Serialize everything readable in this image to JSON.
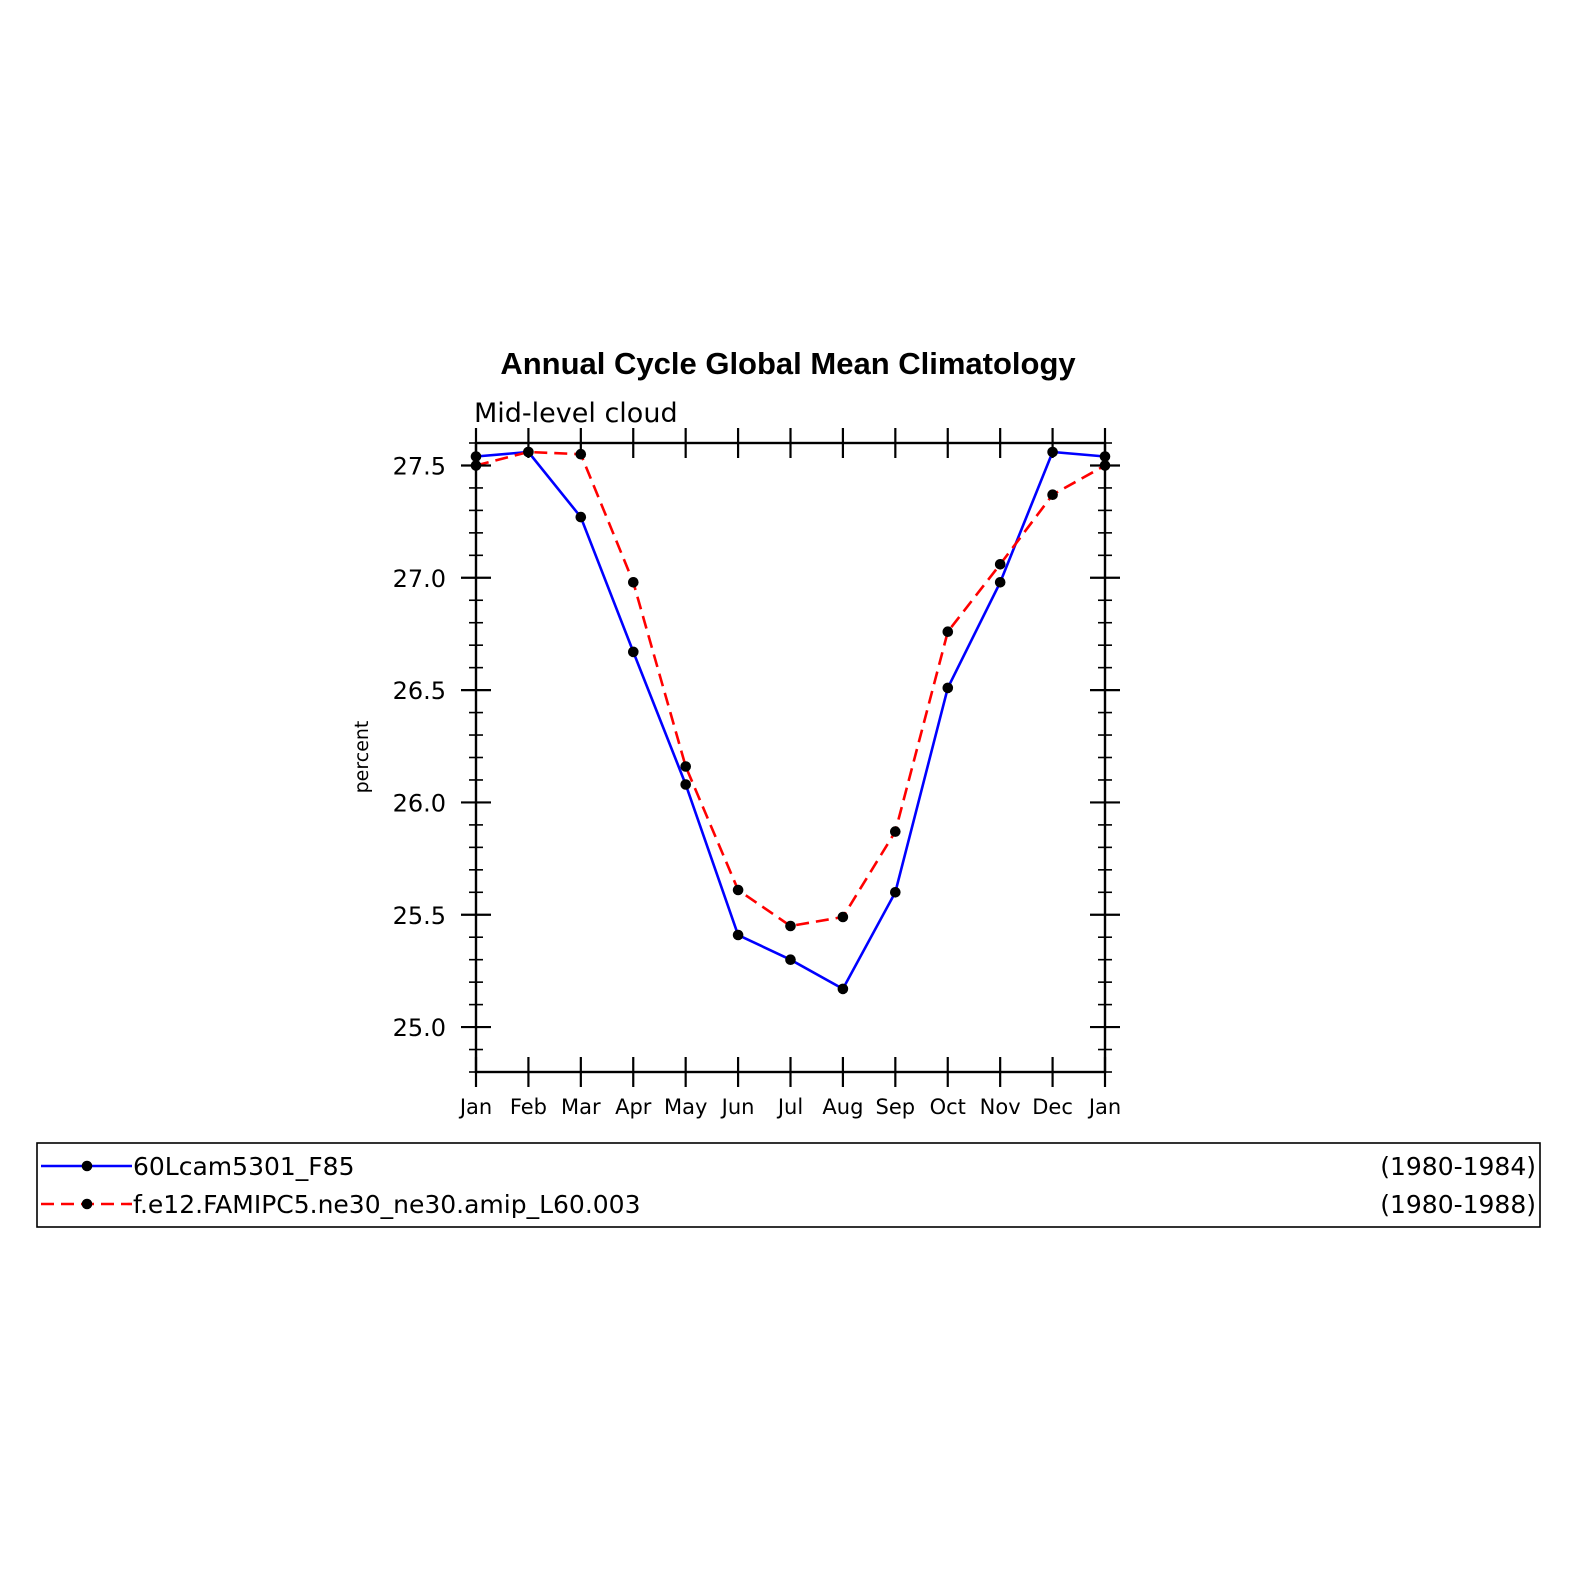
{
  "chart_data": {
    "type": "line",
    "title": "Annual Cycle Global Mean Climatology",
    "subtitle": "Mid-level cloud",
    "ylabel": "percent",
    "xlabel": "",
    "categories": [
      "Jan",
      "Feb",
      "Mar",
      "Apr",
      "May",
      "Jun",
      "Jul",
      "Aug",
      "Sep",
      "Oct",
      "Nov",
      "Dec",
      "Jan"
    ],
    "ylim": [
      24.8,
      27.6
    ],
    "yticks": [
      "25.0",
      "25.5",
      "26.0",
      "26.5",
      "27.0",
      "27.5"
    ],
    "grid": false,
    "legend_position": "bottom",
    "series": [
      {
        "name": "60Lcam5301_F85",
        "period": "(1980-1984)",
        "color": "#0000ff",
        "style": "solid",
        "values": [
          27.54,
          27.56,
          27.27,
          26.67,
          26.08,
          25.41,
          25.3,
          25.17,
          25.6,
          26.51,
          26.98,
          27.56,
          27.54
        ]
      },
      {
        "name": "f.e12.FAMIPC5.ne30_ne30.amip_L60.003",
        "period": "(1980-1988)",
        "color": "#ff0000",
        "style": "dashed",
        "values": [
          27.5,
          27.56,
          27.55,
          26.98,
          26.16,
          25.61,
          25.45,
          25.49,
          25.87,
          26.76,
          27.06,
          27.37,
          27.5
        ]
      }
    ]
  }
}
